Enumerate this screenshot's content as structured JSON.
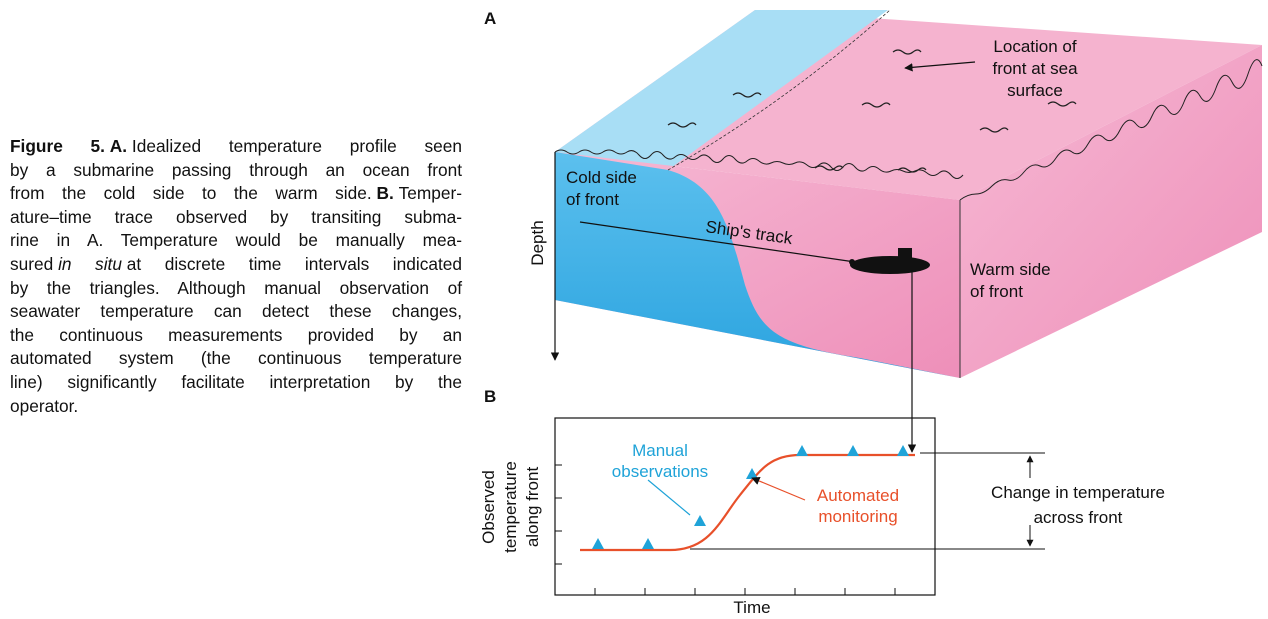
{
  "caption": {
    "lines": [
      [
        {
          "text": "Figure 5.",
          "style": "bold"
        },
        {
          "text": "A.",
          "style": "bold"
        },
        {
          "text": "Idealized temperature profile seen",
          "style": "normal"
        }
      ],
      [
        {
          "text": "by a submarine passing through an ocean front",
          "style": "normal"
        }
      ],
      [
        {
          "text": "from the cold side to the warm side.",
          "style": "normal"
        },
        {
          "text": "B.",
          "style": "bold"
        },
        {
          "text": "Temper-",
          "style": "normal"
        }
      ],
      [
        {
          "text": "ature–time trace observed by transiting subma-",
          "style": "normal"
        }
      ],
      [
        {
          "text": "rine in A. Temperature would be manually mea-",
          "style": "normal"
        }
      ],
      [
        {
          "text": "sured",
          "style": "normal"
        },
        {
          "text": "in situ",
          "style": "italic"
        },
        {
          "text": "at discrete time intervals indicated",
          "style": "normal"
        }
      ],
      [
        {
          "text": "by the triangles. Although manual observation of",
          "style": "normal"
        }
      ],
      [
        {
          "text": "seawater temperature can detect these changes,",
          "style": "normal"
        }
      ],
      [
        {
          "text": "the continuous measurements provided by an",
          "style": "normal"
        }
      ],
      [
        {
          "text": "automated system (the continuous temperature",
          "style": "normal"
        }
      ],
      [
        {
          "text": "line) significantly facilitate interpretation by the",
          "style": "normal"
        }
      ],
      [
        {
          "text": "operator.",
          "style": "normal"
        }
      ]
    ]
  },
  "panel_a": {
    "label": "A",
    "front_location": [
      "Location of",
      "front at sea",
      "surface"
    ],
    "cold_side": [
      "Cold side",
      "of front"
    ],
    "warm_side": [
      "Warm side",
      "of front"
    ],
    "ship_track": "Ship's track",
    "depth": "Depth"
  },
  "panel_b": {
    "label": "B",
    "y_label": [
      "Observed",
      "temperature",
      "along front"
    ],
    "x_label": "Time",
    "manual": [
      "Manual",
      "observations"
    ],
    "automated": [
      "Automated",
      "monitoring"
    ],
    "change": [
      "Change in temperature",
      "across front"
    ]
  }
}
